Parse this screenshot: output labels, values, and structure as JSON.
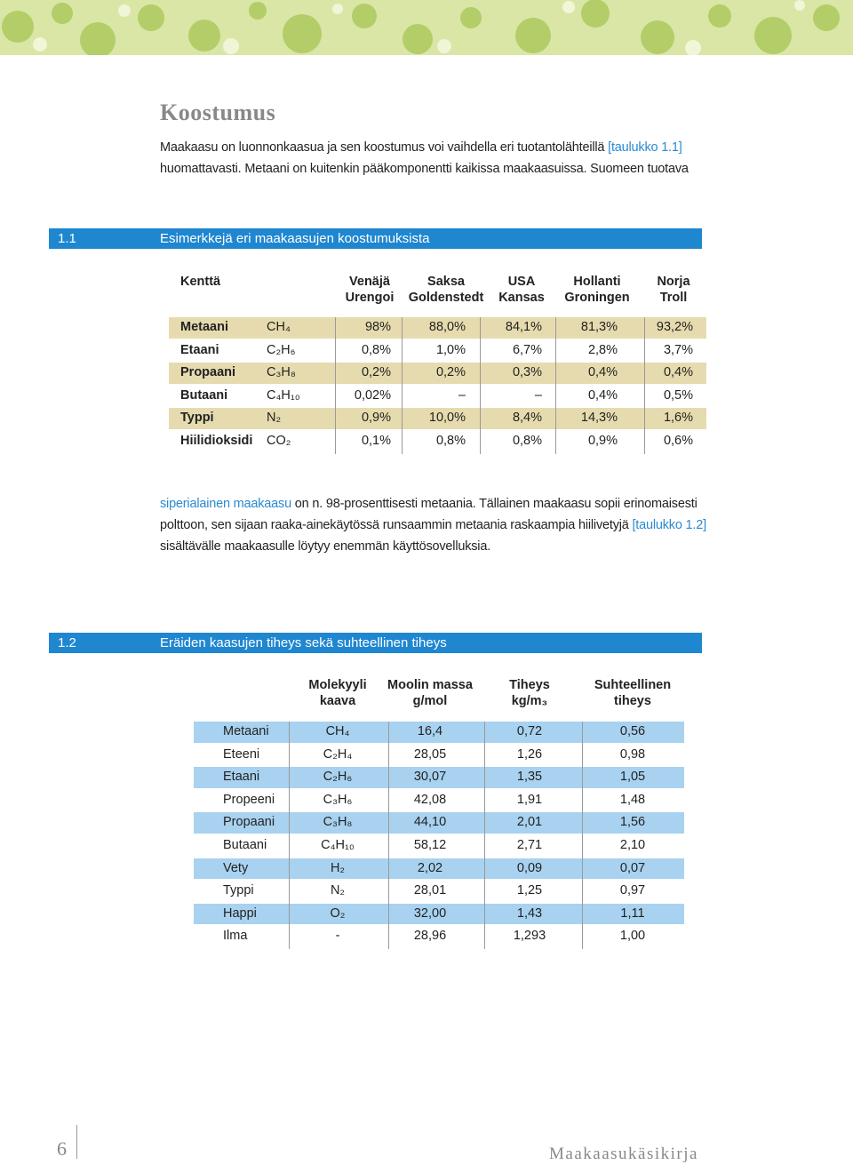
{
  "heading": "Koostumus",
  "paragraph1": [
    "Maakaasu on luonnonkaasua ja sen koostumus voi vaihdella eri tuotantolähteillä ",
    "[taulukko 1.1]",
    " huomattavasti. Metaani on kuitenkin pääkomponentti kaikissa maakaasuissa. Suomeen tuotava"
  ],
  "table1": {
    "number": "1.1",
    "title": "Esimerkkejä eri maakaasujen koostumuksista",
    "first_header": "Kenttä",
    "columns": [
      [
        "Venäjä",
        "Urengoi"
      ],
      [
        "Saksa",
        "Goldenstedt"
      ],
      [
        "USA",
        "Kansas"
      ],
      [
        "Hollanti",
        "Groningen"
      ],
      [
        "Norja",
        "Troll"
      ]
    ],
    "rows": [
      [
        "Metaani",
        "CH₄",
        "98%",
        "88,0%",
        "84,1%",
        "81,3%",
        "93,2%"
      ],
      [
        "Etaani",
        "C₂H₆",
        "0,8%",
        "1,0%",
        "6,7%",
        "2,8%",
        "3,7%"
      ],
      [
        "Propaani",
        "C₃H₈",
        "0,2%",
        "0,2%",
        "0,3%",
        "0,4%",
        "0,4%"
      ],
      [
        "Butaani",
        "C₄H₁₀",
        "0,02%",
        "–",
        "–",
        "0,4%",
        "0,5%"
      ],
      [
        "Typpi",
        "N₂",
        "0,9%",
        "10,0%",
        "8,4%",
        "14,3%",
        "1,6%"
      ],
      [
        "Hiilidioksidi",
        "CO₂",
        "0,1%",
        "0,8%",
        "0,8%",
        "0,9%",
        "0,6%"
      ]
    ]
  },
  "paragraph2": [
    "siperialainen maakaasu",
    " on n. 98-prosenttisesti metaania. Tällainen maakaasu sopii erinomaisesti polttoon, sen sijaan raaka-ainekäytössä runsaammin metaania raskaampia hiilivetyjä ",
    "[taulukko 1.2]",
    " sisältävälle maakaasulle löytyy enemmän käyttösovelluksia."
  ],
  "table2": {
    "number": "1.2",
    "title": "Eräiden kaasujen tiheys sekä suhteellinen tiheys",
    "columns": [
      [
        "Molekyyli",
        "kaava"
      ],
      [
        "Moolin massa",
        "g/mol"
      ],
      [
        "Tiheys",
        "kg/m₃"
      ],
      [
        "Suhteellinen",
        "tiheys"
      ]
    ],
    "rows": [
      [
        "Metaani",
        "CH₄",
        "16,4",
        "0,72",
        "0,56"
      ],
      [
        "Eteeni",
        "C₂H₄",
        "28,05",
        "1,26",
        "0,98"
      ],
      [
        "Etaani",
        "C₂H₆",
        "30,07",
        "1,35",
        "1,05"
      ],
      [
        "Propeeni",
        "C₃H₆",
        "42,08",
        "1,91",
        "1,48"
      ],
      [
        "Propaani",
        "C₃H₈",
        "44,10",
        "2,01",
        "1,56"
      ],
      [
        "Butaani",
        "C₄H₁₀",
        "58,12",
        "2,71",
        "2,10"
      ],
      [
        "Vety",
        "H₂",
        "2,02",
        "0,09",
        "0,07"
      ],
      [
        "Typpi",
        "N₂",
        "28,01",
        "1,25",
        "0,97"
      ],
      [
        "Happi",
        "O₂",
        "32,00",
        "1,43",
        "1,11"
      ],
      [
        "Ilma",
        "-",
        "28,96",
        "1,293",
        "1,00"
      ]
    ]
  },
  "footer": {
    "page": "6",
    "book": "Maakaasukäsikirja"
  }
}
